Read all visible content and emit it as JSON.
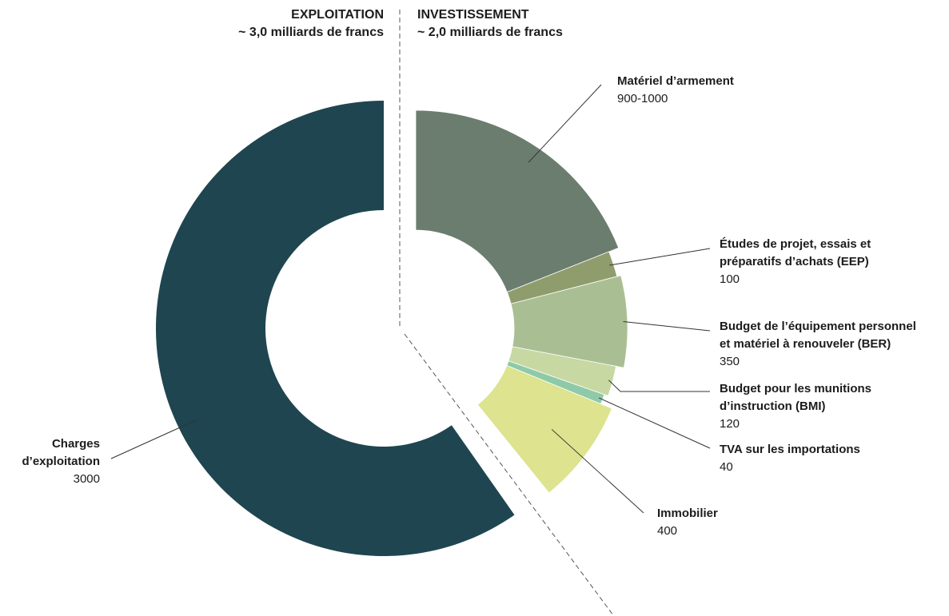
{
  "headers": {
    "left": {
      "title": "EXPLOITATION",
      "subtitle": "~ 3,0 milliards de francs"
    },
    "right": {
      "title": "INVESTISSEMENT",
      "subtitle": "~ 2,0 milliards de francs"
    }
  },
  "chart_data": {
    "type": "pie",
    "style": "donut",
    "series": [
      {
        "name": "EXPLOITATION",
        "total_label": "~ 3,0 milliards de francs",
        "slices": [
          {
            "name_lines": [
              "Charges",
              "d’exploitation"
            ],
            "value_label": "3000",
            "value": 3000,
            "color": "#1f4550"
          }
        ]
      },
      {
        "name": "INVESTISSEMENT",
        "total_label": "~ 2,0 milliards de francs",
        "slices": [
          {
            "name_lines": [
              "Matériel d’armement"
            ],
            "value_label": "900-1000",
            "value": 950,
            "color": "#6b7d6e"
          },
          {
            "name_lines": [
              "Études de projet, essais et",
              "préparatifs d’achats (EEP)"
            ],
            "value_label": "100",
            "value": 100,
            "color": "#8f9d6c"
          },
          {
            "name_lines": [
              "Budget de l’équipement personnel",
              "et matériel à renouveler (BER)"
            ],
            "value_label": "350",
            "value": 350,
            "color": "#a9bf93"
          },
          {
            "name_lines": [
              "Budget pour les munitions",
              "d’instruction (BMI)"
            ],
            "value_label": "120",
            "value": 120,
            "color": "#c7d8a3"
          },
          {
            "name_lines": [
              "TVA sur les importations"
            ],
            "value_label": "40",
            "value": 40,
            "color": "#8fcaa8"
          },
          {
            "name_lines": [
              "Immobilier"
            ],
            "value_label": "400",
            "value": 400,
            "color": "#dde38e"
          }
        ]
      }
    ],
    "legend": "none",
    "separator_lines": "dashed"
  }
}
